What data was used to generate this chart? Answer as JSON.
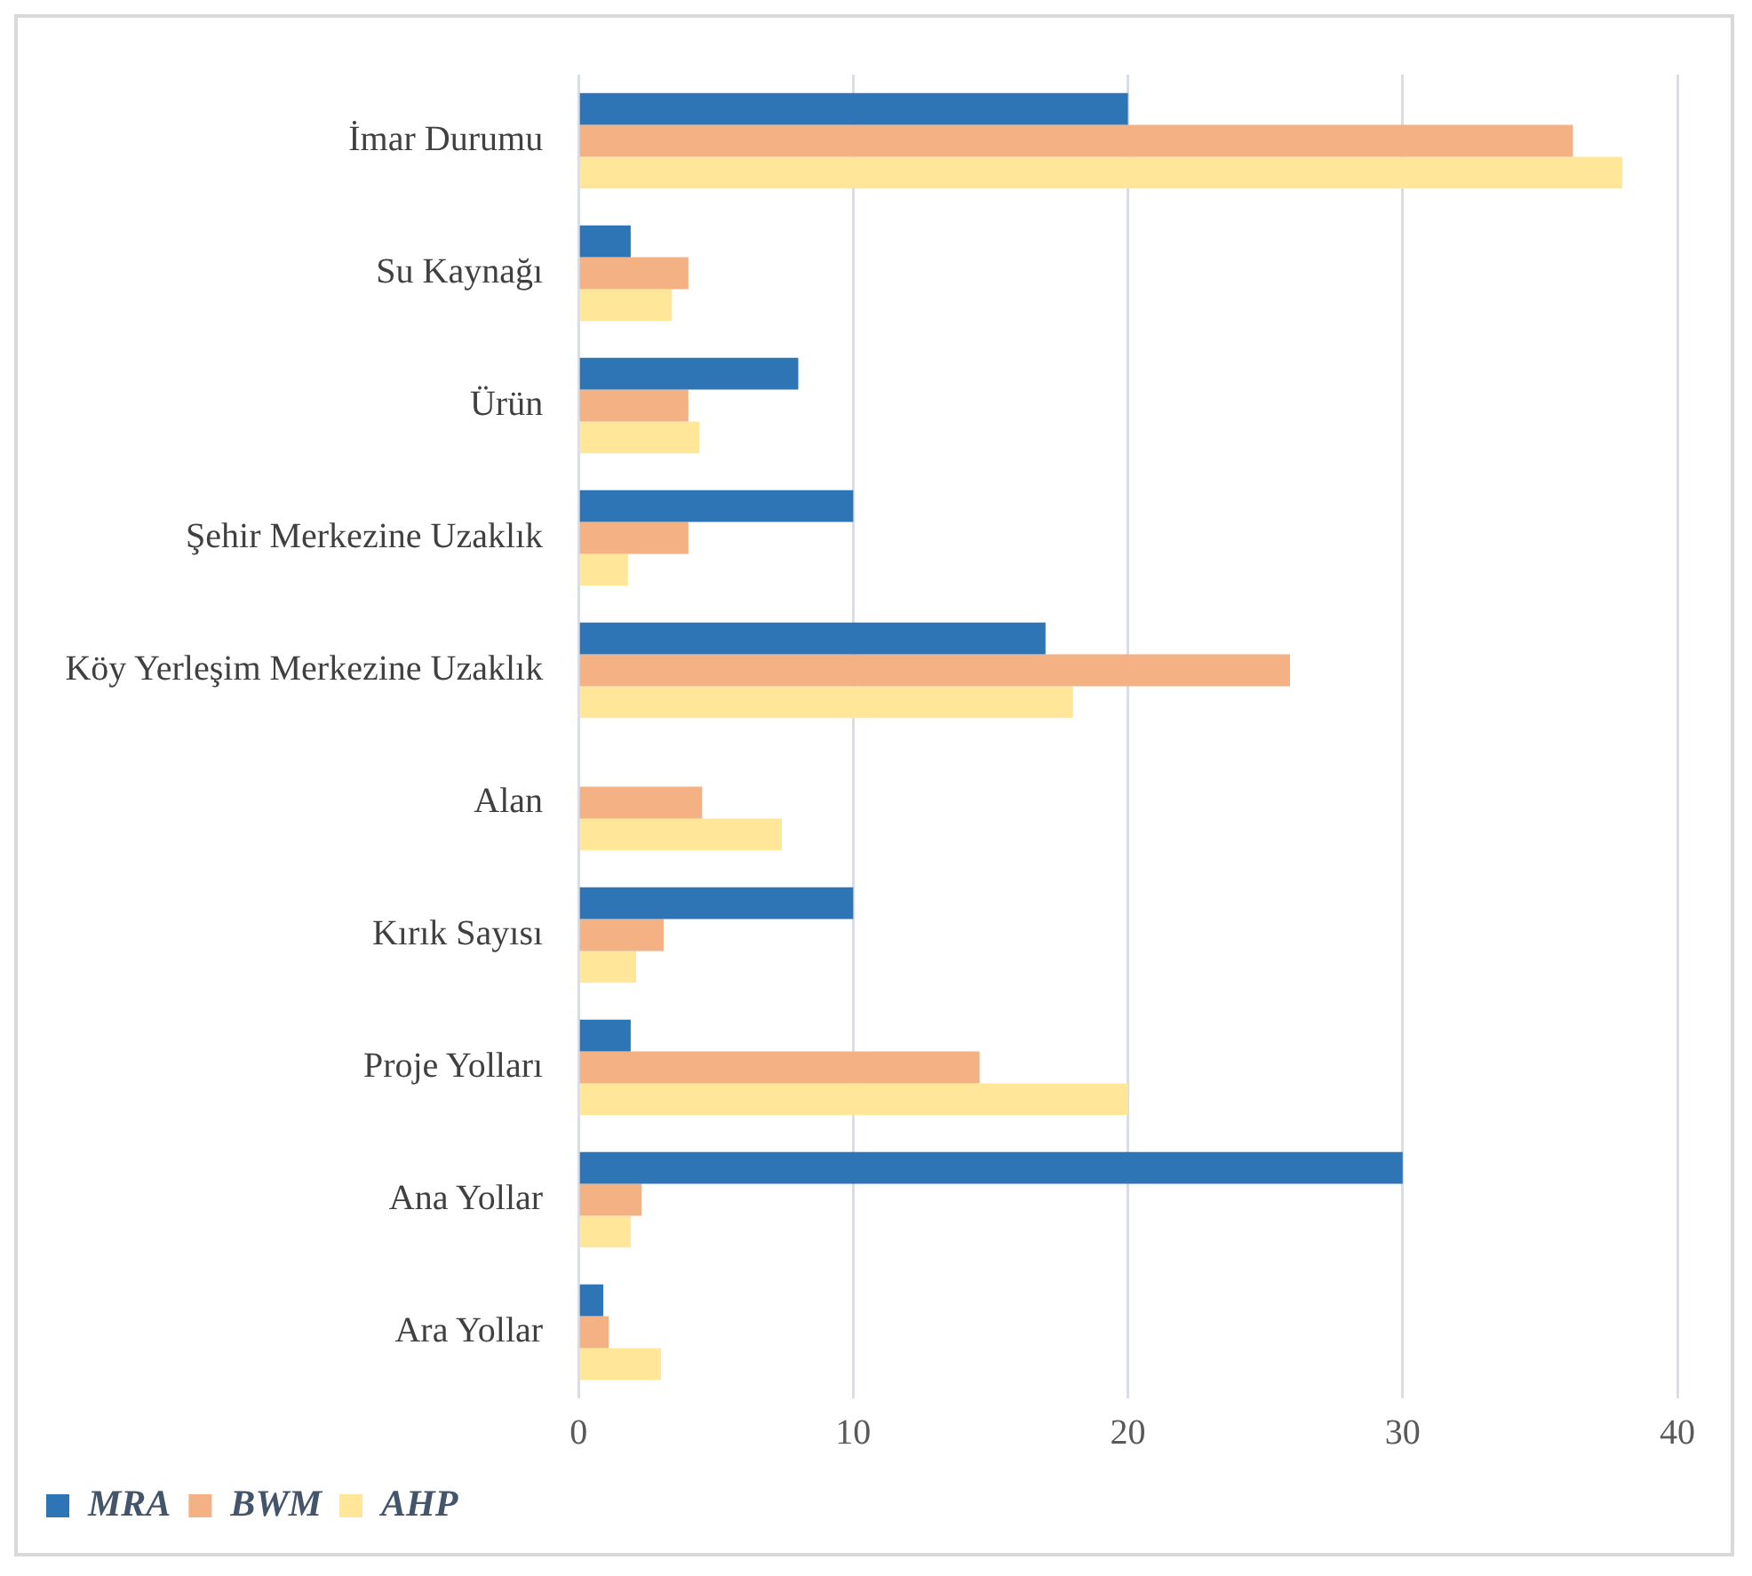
{
  "chart_data": {
    "type": "bar",
    "orientation": "horizontal",
    "categories": [
      "İmar Durumu",
      "Su Kaynağı",
      "Ürün",
      "Şehir Merkezine Uzaklık",
      "Köy Yerleşim Merkezine Uzaklık",
      "Alan",
      "Kırık Sayısı",
      "Proje Yolları",
      "Ana Yollar",
      "Ara Yollar"
    ],
    "series": [
      {
        "name": "MRA",
        "color": "#2e75b6",
        "values": [
          20,
          1.9,
          8,
          10,
          17,
          0,
          10,
          1.9,
          30,
          0.9
        ]
      },
      {
        "name": "BWM",
        "color": "#f4b183",
        "values": [
          36.2,
          4,
          4,
          4,
          25.9,
          4.5,
          3.1,
          14.6,
          2.3,
          1.1
        ]
      },
      {
        "name": "AHP",
        "color": "#ffe699",
        "values": [
          38,
          3.4,
          4.4,
          1.8,
          18,
          7.4,
          2.1,
          20,
          1.9,
          3
        ]
      }
    ],
    "xlim": [
      0,
      40
    ],
    "xticks": [
      0,
      10,
      20,
      30,
      40
    ],
    "grid": "x",
    "legend": "bottom left"
  }
}
